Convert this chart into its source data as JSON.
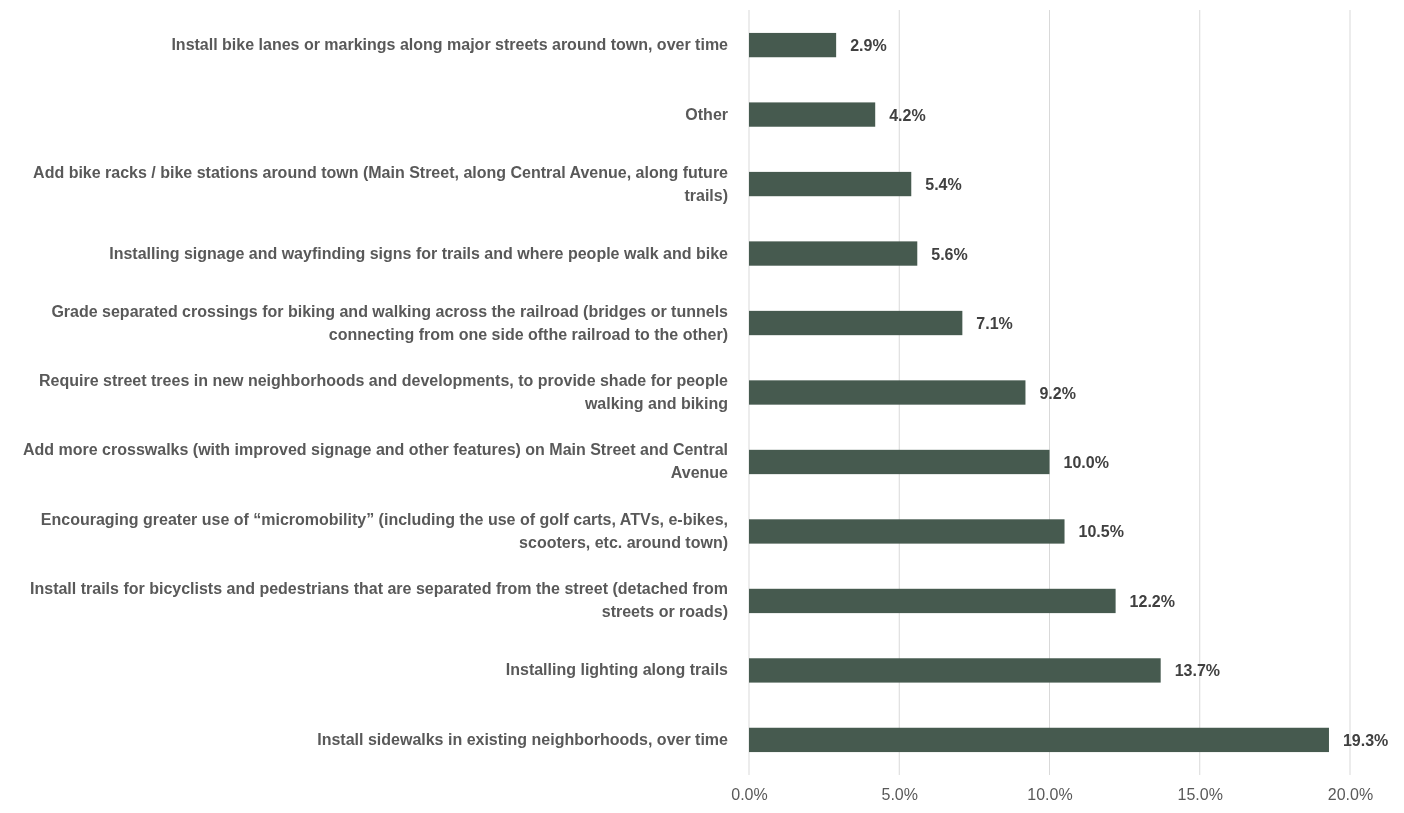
{
  "chart_data": {
    "type": "bar",
    "orientation": "horizontal",
    "categories": [
      "Install bike lanes or markings along major streets around town, over time",
      "Other",
      "Add bike racks / bike stations around town (Main Street, along Central Avenue, along future trails)",
      "Installing signage and wayfinding signs for trails and where people walk and bike",
      "Grade separated crossings for biking and walking across the railroad (bridges or tunnels connecting from one side ofthe railroad to the other)",
      "Require street trees in new neighborhoods and developments, to provide shade for people walking and biking",
      "Add more crosswalks (with improved signage and other features) on Main Street and Central Avenue",
      "Encouraging greater use of “micromobility” (including the use of golf carts, ATVs, e-bikes, scooters, etc. around town)",
      "Install trails for bicyclists and pedestrians that are separated from the street (detached from streets or roads)",
      "Installing lighting along trails",
      "Install sidewalks in existing neighborhoods, over time"
    ],
    "values": [
      2.9,
      4.2,
      5.4,
      5.6,
      7.1,
      9.2,
      10.0,
      10.5,
      12.2,
      13.7,
      19.3
    ],
    "value_labels": [
      "2.9%",
      "4.2%",
      "5.4%",
      "5.6%",
      "7.1%",
      "9.2%",
      "10.0%",
      "10.5%",
      "12.2%",
      "13.7%",
      "19.3%"
    ],
    "color": "#465a4f",
    "xlim": [
      0,
      20
    ],
    "xticks": [
      {
        "value": 0,
        "label": "0.0%"
      },
      {
        "value": 5,
        "label": "5.0%"
      },
      {
        "value": 10,
        "label": "10.0%"
      },
      {
        "value": 15,
        "label": "15.0%"
      },
      {
        "value": 20,
        "label": "20.0%"
      }
    ],
    "grid": "x"
  }
}
